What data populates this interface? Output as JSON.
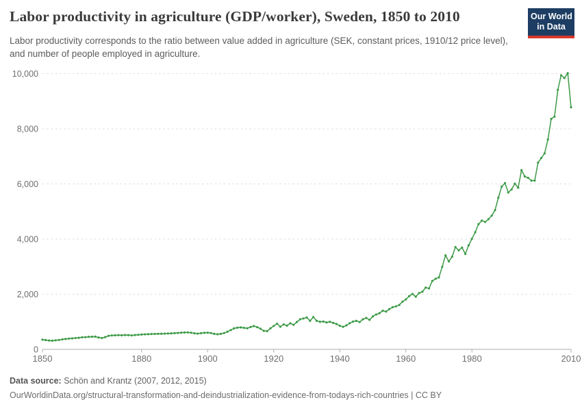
{
  "header": {
    "title": "Labor productivity in agriculture (GDP/worker), Sweden, 1850 to 2010",
    "subtitle": "Labor productivity corresponds to the ratio between value added in agriculture (SEK, constant prices, 1910/12 price level), and number of people employed in agriculture.",
    "logo": {
      "line1": "Our World",
      "line2": "in Data",
      "background_color": "#1d3d63",
      "stripe_color": "#d7382c",
      "text_color": "#ffffff"
    }
  },
  "chart_data": {
    "type": "line",
    "title": "Labor productivity in agriculture (GDP/worker), Sweden, 1850 to 2010",
    "xlabel": "",
    "ylabel": "",
    "xlim": [
      1850,
      2010
    ],
    "ylim": [
      0,
      10000
    ],
    "grid": "horizontal dashed gridlines at each y tick, solid baseline at 0",
    "legend": "none",
    "x_tick_years": [
      1850,
      1880,
      1900,
      1920,
      1940,
      1960,
      1980,
      2010
    ],
    "x_tick_labels": [
      "1850",
      "1880",
      "1900",
      "1920",
      "1940",
      "1960",
      "1980",
      "2010"
    ],
    "y_ticks": [
      0,
      2000,
      4000,
      6000,
      8000,
      10000
    ],
    "y_tick_labels": [
      "0",
      "2,000",
      "4,000",
      "6,000",
      "8,000",
      "10,000"
    ],
    "x_start_year": 1850,
    "x_end_year": 2010,
    "x_interval_years": 1,
    "marker": "dot",
    "series": [
      {
        "name": "Sweden",
        "color": "#3C9A46",
        "unit": "SEK per worker, constant 1910/12 prices",
        "values": [
          350,
          335,
          320,
          315,
          328,
          340,
          362,
          375,
          390,
          398,
          412,
          420,
          438,
          442,
          455,
          458,
          462,
          428,
          412,
          445,
          490,
          505,
          510,
          515,
          510,
          520,
          515,
          505,
          520,
          528,
          538,
          545,
          550,
          556,
          560,
          563,
          566,
          570,
          576,
          580,
          586,
          595,
          606,
          612,
          614,
          604,
          582,
          572,
          586,
          600,
          606,
          592,
          562,
          548,
          562,
          592,
          640,
          700,
          760,
          785,
          795,
          780,
          765,
          810,
          845,
          805,
          750,
          670,
          660,
          760,
          850,
          930,
          820,
          905,
          860,
          945,
          890,
          990,
          1090,
          1120,
          1155,
          1035,
          1170,
          1035,
          1000,
          1010,
          975,
          1000,
          960,
          920,
          856,
          816,
          870,
          947,
          1008,
          1035,
          990,
          1090,
          1140,
          1070,
          1195,
          1265,
          1310,
          1400,
          1370,
          1460,
          1530,
          1560,
          1610,
          1730,
          1810,
          1930,
          2010,
          1910,
          2040,
          2090,
          2240,
          2210,
          2480,
          2560,
          2610,
          2990,
          3410,
          3190,
          3360,
          3710,
          3590,
          3690,
          3460,
          3770,
          4010,
          4250,
          4540,
          4670,
          4620,
          4720,
          4850,
          5050,
          5500,
          5900,
          6030,
          5690,
          5800,
          6010,
          5860,
          6500,
          6270,
          6220,
          6120,
          6120,
          6770,
          6940,
          7110,
          7610,
          8360,
          8440,
          9410,
          9940,
          9840,
          10020,
          8780
        ]
      }
    ],
    "style": {
      "gridline_color": "#dcdcdc",
      "axis_color": "#ababab",
      "tick_label_color": "#6e6e6e",
      "line_width": 1.5,
      "marker_radius": 1.6
    }
  },
  "footer": {
    "source_label": "Data source:",
    "source_text": " Schön and Krantz (2007, 2012, 2015)",
    "note_text": "OurWorldinData.org/structural-transformation-and-deindustrialization-evidence-from-todays-rich-countries | CC BY"
  }
}
